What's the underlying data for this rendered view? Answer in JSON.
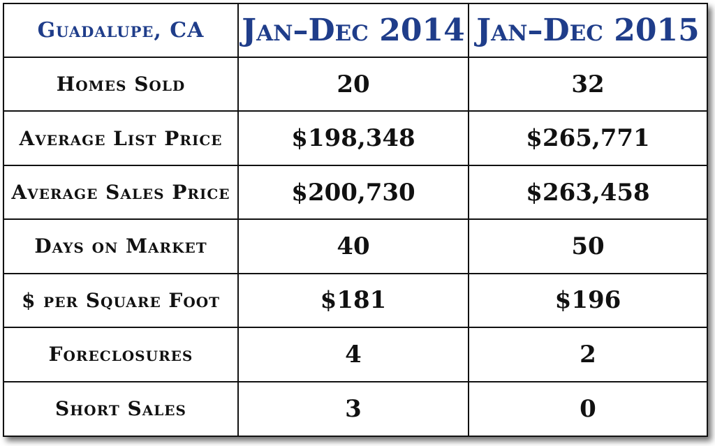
{
  "chart_data": {
    "type": "table",
    "header": {
      "location": "Guadalupe, CA",
      "col_2014": "Jan–Dec 2014",
      "col_2015": "Jan–Dec 2015"
    },
    "rows": [
      {
        "label": "Homes Sold",
        "v2014": "20",
        "v2015": "32"
      },
      {
        "label": "Average List Price",
        "v2014": "$198,348",
        "v2015": "$265,771"
      },
      {
        "label": "Average Sales Price",
        "v2014": "$200,730",
        "v2015": "$263,458"
      },
      {
        "label": "Days on Market",
        "v2014": "40",
        "v2015": "50"
      },
      {
        "label": "$ per Square Foot",
        "v2014": "$181",
        "v2015": "$196"
      },
      {
        "label": "Foreclosures",
        "v2014": "4",
        "v2015": "2"
      },
      {
        "label": "Short Sales",
        "v2014": "3",
        "v2015": "0"
      }
    ],
    "colors": {
      "header_text": "#1f3d8a",
      "body_text": "#111111",
      "border": "#111111"
    }
  }
}
